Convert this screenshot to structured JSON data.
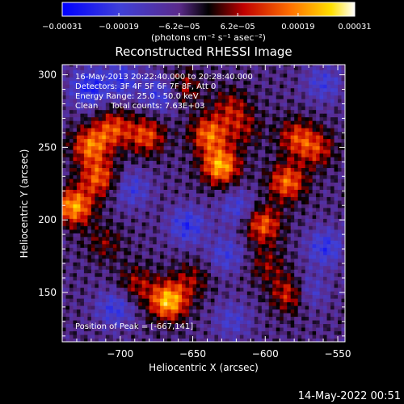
{
  "chart_data": {
    "type": "heatmap",
    "title": "Reconstructed RHESSI Image",
    "xlabel": "Heliocentric X (arcsec)",
    "ylabel": "Heliocentric Y (arcsec)",
    "xlim": [
      -740,
      -545
    ],
    "ylim": [
      116,
      307
    ],
    "xticks": [
      -700,
      -650,
      -600,
      -550
    ],
    "yticks": [
      150,
      200,
      250,
      300
    ],
    "xtick_labels": [
      "−700",
      "−650",
      "−600",
      "−550"
    ],
    "ytick_labels": [
      "150",
      "200",
      "250",
      "300"
    ],
    "grid": false,
    "colorbar": {
      "min": -0.00031,
      "max": 0.00031,
      "colormap": "blue-purple-black-red-yellow-white",
      "ticks": [
        -0.00031,
        -0.00019,
        -6.2e-05,
        6.2e-05,
        0.00019,
        0.00031
      ],
      "tick_labels": [
        "−0.00031",
        "−0.00019",
        "−6.2e−05",
        "6.2e−05",
        "0.00019",
        "0.00031"
      ],
      "unit_label": "(photons cm⁻² s⁻¹ asec⁻²)"
    },
    "annotations": [
      "16-May-2013 20:22:40.000 to 20:28:40.000",
      "Detectors: 3F 4F 5F 6F 7F 8F, Att 0",
      "Energy Range: 25.0 - 50.0 keV",
      "Clean     Total counts: 7.63E+03"
    ],
    "peak_label": "Position of Peak = [-667,141]",
    "blobs": [
      {
        "x": -733,
        "y": 208,
        "v": 0.00027
      },
      {
        "x": -722,
        "y": 250,
        "v": 0.00022
      },
      {
        "x": -716,
        "y": 228,
        "v": 0.0002
      },
      {
        "x": -706,
        "y": 262,
        "v": 0.00018
      },
      {
        "x": -683,
        "y": 257,
        "v": 0.00019
      },
      {
        "x": -659,
        "y": 290,
        "v": 0.00014
      },
      {
        "x": -632,
        "y": 236,
        "v": 0.00028
      },
      {
        "x": -640,
        "y": 258,
        "v": 0.00022
      },
      {
        "x": -625,
        "y": 277,
        "v": 0.00012
      },
      {
        "x": -616,
        "y": 262,
        "v": 0.0001
      },
      {
        "x": -603,
        "y": 196,
        "v": 0.00021
      },
      {
        "x": -586,
        "y": 225,
        "v": 0.00022
      },
      {
        "x": -580,
        "y": 256,
        "v": 0.00016
      },
      {
        "x": -566,
        "y": 248,
        "v": 0.00015
      },
      {
        "x": -668,
        "y": 143,
        "v": 0.0003
      },
      {
        "x": -690,
        "y": 155,
        "v": 0.00012
      },
      {
        "x": -652,
        "y": 158,
        "v": 0.0001
      },
      {
        "x": -584,
        "y": 148,
        "v": 0.00018
      },
      {
        "x": -600,
        "y": 168,
        "v": 0.0001
      },
      {
        "x": -712,
        "y": 183,
        "v": 9e-05
      },
      {
        "x": -723,
        "y": 290,
        "v": -0.00018
      },
      {
        "x": -700,
        "y": 296,
        "v": -0.00014
      },
      {
        "x": -672,
        "y": 286,
        "v": -0.00016
      },
      {
        "x": -693,
        "y": 220,
        "v": -0.00012
      },
      {
        "x": -655,
        "y": 195,
        "v": -0.00016
      },
      {
        "x": -620,
        "y": 207,
        "v": -0.00012
      },
      {
        "x": -628,
        "y": 175,
        "v": -0.00012
      },
      {
        "x": -705,
        "y": 138,
        "v": -0.00014
      },
      {
        "x": -624,
        "y": 130,
        "v": -0.0001
      },
      {
        "x": -560,
        "y": 180,
        "v": -0.00015
      },
      {
        "x": -572,
        "y": 150,
        "v": -0.00012
      },
      {
        "x": -561,
        "y": 293,
        "v": -0.00012
      }
    ]
  },
  "footer": {
    "timestamp": "14-May-2022 00:51"
  }
}
